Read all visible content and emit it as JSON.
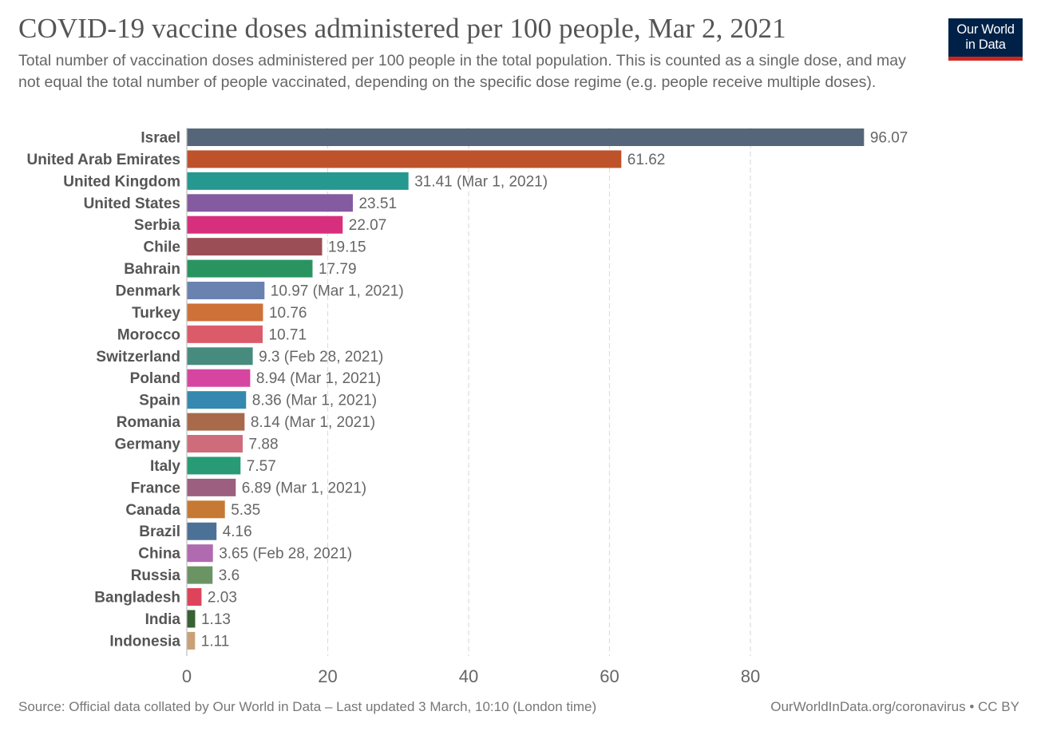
{
  "header": {
    "title": "COVID-19 vaccine doses administered per 100 people, Mar 2, 2021",
    "subtitle": "Total number of vaccination doses administered per 100 people in the total population. This is counted as a single dose, and may not equal the total number of people vaccinated, depending on the specific dose regime (e.g. people receive multiple doses).",
    "logo_line1": "Our World",
    "logo_line2": "in Data",
    "logo_bg_color": "#002147",
    "logo_accent_color": "#ce261e"
  },
  "footer": {
    "source": "Source: Official data collated by Our World in Data – Last updated 3 March, 10:10 (London time)",
    "license": "OurWorldInData.org/coronavirus • CC BY"
  },
  "chart_data": {
    "type": "bar",
    "orientation": "horizontal",
    "title": "COVID-19 vaccine doses administered per 100 people, Mar 2, 2021",
    "xlabel": "",
    "ylabel": "",
    "xlim": [
      0,
      96.07
    ],
    "xticks": [
      0,
      20,
      40,
      60,
      80
    ],
    "grid": "vertical dashed",
    "legend": "none",
    "categories": [
      "Israel",
      "United Arab Emirates",
      "United Kingdom",
      "United States",
      "Serbia",
      "Chile",
      "Bahrain",
      "Denmark",
      "Turkey",
      "Morocco",
      "Switzerland",
      "Poland",
      "Spain",
      "Romania",
      "Germany",
      "Italy",
      "France",
      "Canada",
      "Brazil",
      "China",
      "Russia",
      "Bangladesh",
      "India",
      "Indonesia"
    ],
    "values": [
      96.07,
      61.62,
      31.41,
      23.51,
      22.07,
      19.15,
      17.79,
      10.97,
      10.76,
      10.71,
      9.3,
      8.94,
      8.36,
      8.14,
      7.88,
      7.57,
      6.89,
      5.35,
      4.16,
      3.65,
      3.6,
      2.03,
      1.13,
      1.11
    ],
    "value_labels": [
      "96.07",
      "61.62",
      "31.41 (Mar 1, 2021)",
      "23.51",
      "22.07",
      "19.15",
      "17.79",
      "10.97 (Mar 1, 2021)",
      "10.76",
      "10.71",
      "9.3 (Feb 28, 2021)",
      "8.94 (Mar 1, 2021)",
      "8.36 (Mar 1, 2021)",
      "8.14 (Mar 1, 2021)",
      "7.88",
      "7.57",
      "6.89 (Mar 1, 2021)",
      "5.35",
      "4.16",
      "3.65 (Feb 28, 2021)",
      "3.6",
      "2.03",
      "1.13",
      "1.11"
    ],
    "colors": [
      "#56667a",
      "#be522b",
      "#259890",
      "#845ba0",
      "#d72f7d",
      "#9a4e55",
      "#2a9461",
      "#6a82b0",
      "#cd7138",
      "#dc5b6a",
      "#478a7e",
      "#d645a0",
      "#3588af",
      "#a86a4a",
      "#cf6c7c",
      "#289a76",
      "#9c5f80",
      "#c67932",
      "#4c7196",
      "#b06ab0",
      "#6b9464",
      "#dd4459",
      "#376231",
      "#c9a077"
    ]
  }
}
